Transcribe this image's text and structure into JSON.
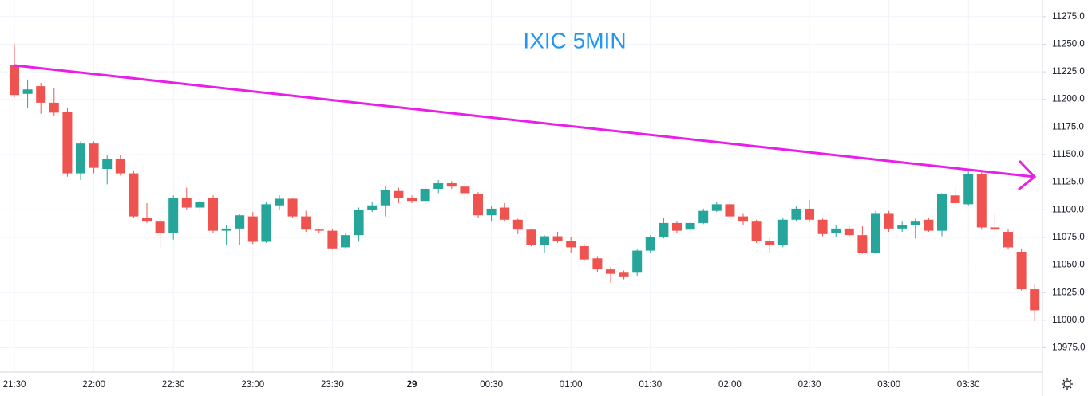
{
  "chart_data": {
    "type": "candlestick",
    "title": "IXIC 5MIN",
    "categories": [
      "21:30",
      null,
      null,
      null,
      null,
      null,
      "22:00",
      null,
      null,
      null,
      null,
      null,
      "22:30",
      null,
      null,
      null,
      null,
      null,
      "23:00",
      null,
      null,
      null,
      null,
      null,
      "23:30",
      null,
      null,
      null,
      null,
      null,
      "29",
      null,
      null,
      null,
      null,
      null,
      "00:30",
      null,
      null,
      null,
      null,
      null,
      "01:00",
      null,
      null,
      null,
      null,
      null,
      "01:30",
      null,
      null,
      null,
      null,
      null,
      "02:00",
      null,
      null,
      null,
      null,
      null,
      "02:30",
      null,
      null,
      null,
      null,
      null,
      "03:00",
      null,
      null,
      null,
      null,
      null,
      "03:30",
      null,
      null,
      null,
      null,
      null
    ],
    "open": [
      11231,
      11205,
      11212,
      11197,
      11189,
      11133,
      11160,
      11137,
      11146,
      11133,
      11093,
      11090,
      11079,
      11111,
      11102,
      11111,
      11081,
      11083,
      11094,
      11071,
      11104,
      11110,
      11094,
      11082,
      11081,
      11066,
      11077,
      11100,
      11104,
      11117,
      11111,
      11108,
      11119,
      11124,
      11121,
      11114,
      11095,
      11102,
      11091,
      11082,
      11068,
      11076,
      11072,
      11067,
      11056,
      11046,
      11043,
      11043,
      11063,
      11075,
      11088,
      11082,
      11088,
      11099,
      11105,
      11094,
      11090,
      11072,
      11068,
      11091,
      11101,
      11091,
      11079,
      11083,
      11077,
      11061,
      11097,
      11083,
      11086,
      11091,
      11081,
      11113,
      11105,
      11132,
      11084,
      11080,
      11062,
      11028
    ],
    "high": [
      11250,
      11218,
      11215,
      11210,
      11192,
      11162,
      11162,
      11150,
      11150,
      11135,
      11106,
      11092,
      11113,
      11120,
      11110,
      11113,
      11086,
      11096,
      11098,
      11107,
      11113,
      11111,
      11099,
      11083,
      11083,
      11079,
      11102,
      11107,
      11121,
      11120,
      11113,
      11123,
      11127,
      11126,
      11126,
      11116,
      11103,
      11106,
      11092,
      11083,
      11077,
      11080,
      11075,
      11069,
      11058,
      11048,
      11045,
      11064,
      11077,
      11093,
      11090,
      11090,
      11101,
      11107,
      11107,
      11097,
      11091,
      11074,
      11093,
      11103,
      11109,
      11092,
      11086,
      11085,
      11085,
      11099,
      11099,
      11090,
      11092,
      11093,
      11115,
      11120,
      11135,
      11134,
      11096,
      11083,
      11065,
      11033
    ],
    "low": [
      11202,
      11192,
      11187,
      11185,
      11130,
      11127,
      11133,
      11123,
      11131,
      11093,
      11088,
      11066,
      11073,
      11100,
      11098,
      11079,
      11068,
      11068,
      11069,
      11070,
      11100,
      11093,
      11080,
      11079,
      11064,
      11065,
      11071,
      11098,
      11094,
      11106,
      11106,
      11105,
      11115,
      11119,
      11108,
      11093,
      11090,
      11090,
      11078,
      11067,
      11061,
      11070,
      11061,
      11054,
      11044,
      11034,
      11037,
      11040,
      11061,
      11074,
      11079,
      11079,
      11087,
      11098,
      11093,
      11086,
      11070,
      11061,
      11066,
      11090,
      11089,
      11076,
      11075,
      11075,
      11060,
      11060,
      11080,
      11080,
      11074,
      11080,
      11076,
      11104,
      11104,
      11082,
      11080,
      11064,
      11027,
      10999
    ],
    "close": [
      11204,
      11209,
      11197,
      11188,
      11133,
      11160,
      11138,
      11146,
      11133,
      11094,
      11090,
      11079,
      11111,
      11102,
      11107,
      11081,
      11083,
      11095,
      11071,
      11105,
      11110,
      11094,
      11082,
      11081,
      11065,
      11077,
      11100,
      11104,
      11118,
      11111,
      11108,
      11119,
      11124,
      11121,
      11115,
      11095,
      11101,
      11091,
      11082,
      11068,
      11076,
      11072,
      11066,
      11055,
      11046,
      11042,
      11039,
      11063,
      11075,
      11088,
      11081,
      11088,
      11099,
      11105,
      11094,
      11090,
      11072,
      11068,
      11091,
      11101,
      11091,
      11078,
      11083,
      11077,
      11061,
      11097,
      11083,
      11086,
      11090,
      11081,
      11114,
      11106,
      11132,
      11084,
      11082,
      11066,
      11028,
      11009
    ],
    "up_color": "#26a69a",
    "down_color": "#ef5350",
    "ylim": [
      10953,
      11290
    ],
    "yticks": [
      {
        "value": 10975,
        "label": "10975.0"
      },
      {
        "value": 11000,
        "label": "11000.0"
      },
      {
        "value": 11025,
        "label": "11025.0"
      },
      {
        "value": 11050,
        "label": "11050.0"
      },
      {
        "value": 11075,
        "label": "11075.0"
      },
      {
        "value": 11100,
        "label": "11100.0"
      },
      {
        "value": 11125,
        "label": "11125.0"
      },
      {
        "value": 11150,
        "label": "11150.0"
      },
      {
        "value": 11175,
        "label": "11175.0"
      },
      {
        "value": 11200,
        "label": "11200.0"
      },
      {
        "value": 11225,
        "label": "11225.0"
      },
      {
        "value": 11250,
        "label": "11250.0"
      },
      {
        "value": 11275,
        "label": "11275.0"
      }
    ],
    "grid": true
  }
}
